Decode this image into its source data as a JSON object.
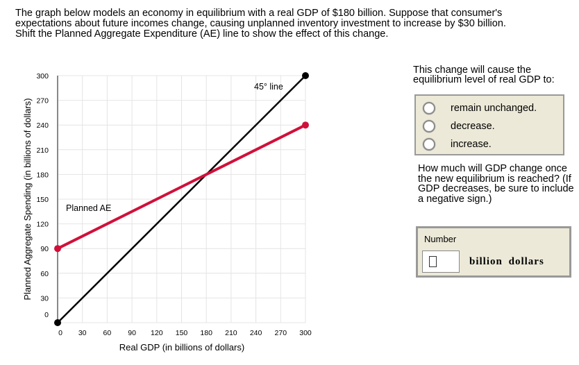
{
  "prompt": "The graph below models an economy in equilibrium with a real GDP of $180 billion. Suppose that consumer's expectations about future incomes change, causing unplanned inventory investment to increase by $30 billion. Shift the Planned Aggregate Expenditure (AE) line to show the effect of this change.",
  "question1": {
    "text": "This change will cause the equilibrium level of real GDP to:",
    "options": [
      "remain unchanged.",
      "decrease.",
      "increase."
    ]
  },
  "question2": {
    "text": "How much will GDP change once the new equilibrium is reached? (If GDP decreases, be sure to include a negative sign.)",
    "input_label": "Number",
    "input_value": "",
    "unit": "billion dollars"
  },
  "chart_data": {
    "type": "line",
    "xlabel": "Real GDP (in billions of dollars)",
    "ylabel": "Planned Aggregate Spending (in billions of dollars)",
    "xlim": [
      0,
      300
    ],
    "ylim": [
      0,
      300
    ],
    "xticks": [
      "0",
      "30",
      "60",
      "90",
      "120",
      "150",
      "180",
      "210",
      "240",
      "270",
      "300"
    ],
    "yticks": [
      "0",
      "30",
      "60",
      "90",
      "120",
      "150",
      "180",
      "210",
      "240",
      "270",
      "300"
    ],
    "grid": true,
    "series": [
      {
        "name": "45° line",
        "color": "#000000",
        "points": [
          [
            0,
            0
          ],
          [
            300,
            300
          ]
        ]
      },
      {
        "name": "Planned AE",
        "color": "#d0103a",
        "points": [
          [
            0,
            90
          ],
          [
            300,
            240
          ]
        ]
      }
    ]
  }
}
